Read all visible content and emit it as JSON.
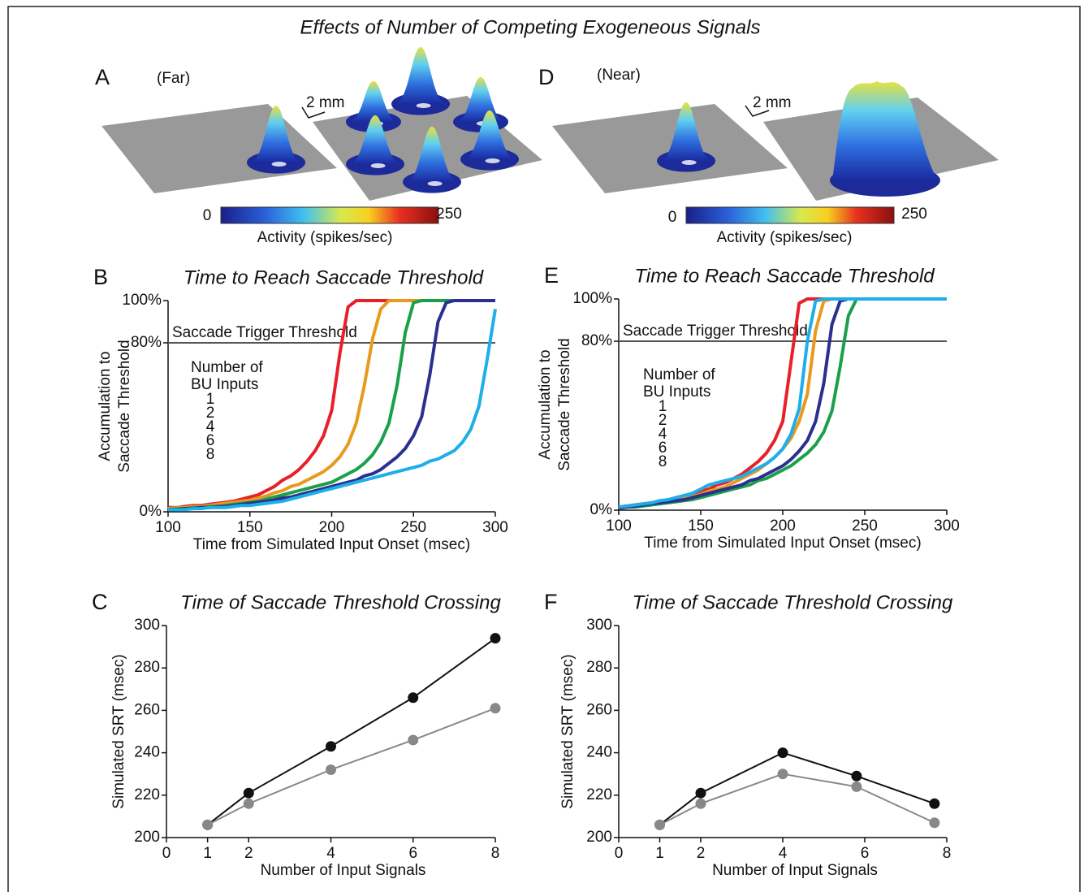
{
  "title": "Effects of Number of Competing Exogeneous Signals",
  "panels_3d": [
    {
      "letter": "A",
      "label": "(Far)",
      "scale": "2 mm",
      "colorbar": {
        "min": 0,
        "max": 250,
        "label": "Activity (spikes/sec)"
      }
    },
    {
      "letter": "D",
      "label": "(Near)",
      "scale": "2 mm",
      "colorbar": {
        "min": 0,
        "max": 250,
        "label": "Activity (spikes/sec)"
      }
    }
  ],
  "chart_data": [
    {
      "type": "line",
      "panel": "B",
      "title": "Time to Reach Saccade Threshold",
      "x_label": "Time from Simulated Input Onset (msec)",
      "y_label": [
        "Accumulation to",
        "Saccade Threshold"
      ],
      "xlim": [
        100,
        300
      ],
      "ylim": [
        0,
        100
      ],
      "xticks": [
        100,
        150,
        200,
        250,
        300
      ],
      "yticks": [
        {
          "value": 0,
          "label": "0%"
        },
        {
          "value": 80,
          "label": "80%"
        },
        {
          "value": 100,
          "label": "100%"
        }
      ],
      "threshold": {
        "value": 80,
        "label": "Saccade Trigger Threshold"
      },
      "legend_title": [
        "Number of",
        "BU Inputs"
      ],
      "x": [
        100,
        105,
        110,
        115,
        120,
        125,
        130,
        135,
        140,
        145,
        150,
        155,
        160,
        165,
        170,
        175,
        180,
        185,
        190,
        195,
        200,
        205,
        210,
        215,
        220,
        225,
        230,
        235,
        240,
        245,
        250,
        255,
        260,
        265,
        270,
        275,
        280,
        285,
        290,
        295,
        300
      ],
      "series": [
        {
          "name": "1",
          "color": "#e8202a",
          "values": [
            2,
            2,
            2.5,
            3,
            3,
            3.5,
            4,
            4.5,
            5,
            6,
            7,
            8,
            10,
            12,
            15,
            17,
            20,
            24,
            29,
            36,
            48,
            75,
            97,
            100,
            100,
            100,
            100,
            100,
            100,
            100,
            100,
            100,
            100,
            100,
            100,
            100,
            100,
            100,
            100,
            100,
            100
          ]
        },
        {
          "name": "2",
          "color": "#e89a1e",
          "values": [
            1.5,
            2,
            2,
            2.5,
            2.5,
            3,
            3.5,
            4,
            4.5,
            5,
            5.5,
            6.5,
            7.5,
            9,
            10,
            12,
            13,
            15,
            17,
            19,
            22,
            26,
            32,
            42,
            60,
            82,
            96,
            100,
            100,
            100,
            100,
            100,
            100,
            100,
            100,
            100,
            100,
            100,
            100,
            100,
            100
          ]
        },
        {
          "name": "4",
          "color": "#1aa04a",
          "values": [
            1,
            1.5,
            1.5,
            2,
            2,
            2.5,
            2.5,
            3,
            3.5,
            4,
            4.5,
            5,
            6,
            7,
            8,
            9,
            10,
            11,
            12,
            13,
            14,
            16,
            18,
            20,
            23,
            27,
            33,
            42,
            60,
            85,
            99,
            100,
            100,
            100,
            100,
            100,
            100,
            100,
            100,
            100,
            100
          ]
        },
        {
          "name": "6",
          "color": "#2b2f8f",
          "values": [
            1,
            1,
            1.5,
            1.5,
            2,
            2,
            2.5,
            2.5,
            3,
            3.5,
            4,
            4.5,
            5,
            5.5,
            6.5,
            7,
            8,
            9,
            10,
            11,
            12,
            13,
            14,
            15,
            17,
            18,
            20,
            23,
            26,
            30,
            36,
            45,
            65,
            90,
            99,
            100,
            100,
            100,
            100,
            100,
            100
          ]
        },
        {
          "name": "8",
          "color": "#1eaee8",
          "values": [
            1,
            1,
            1,
            1.5,
            1.5,
            2,
            2,
            2,
            2.5,
            3,
            3,
            3.5,
            4,
            4.5,
            5,
            6,
            7,
            8,
            9,
            10,
            11,
            12,
            13,
            14,
            15,
            16,
            17,
            18,
            19,
            20,
            21,
            22,
            24,
            25,
            27,
            29,
            33,
            39,
            50,
            72,
            96
          ]
        }
      ]
    },
    {
      "type": "line",
      "panel": "E",
      "title": "Time to Reach Saccade Threshold",
      "x_label": "Time from Simulated Input Onset (msec)",
      "y_label": [
        "Accumulation to",
        "Saccade Threshold"
      ],
      "xlim": [
        100,
        300
      ],
      "ylim": [
        0,
        100
      ],
      "xticks": [
        100,
        150,
        200,
        250,
        300
      ],
      "yticks": [
        {
          "value": 0,
          "label": "0%"
        },
        {
          "value": 80,
          "label": "80%"
        },
        {
          "value": 100,
          "label": "100%"
        }
      ],
      "threshold": {
        "value": 80,
        "label": "Saccade Trigger Threshold"
      },
      "legend_title": [
        "Number of",
        "BU Inputs"
      ],
      "x": [
        100,
        105,
        110,
        115,
        120,
        125,
        130,
        135,
        140,
        145,
        150,
        155,
        160,
        165,
        170,
        175,
        180,
        185,
        190,
        195,
        200,
        205,
        210,
        215,
        220,
        225,
        230,
        235,
        240,
        245,
        250,
        255,
        260,
        265,
        270,
        275,
        280,
        285,
        290,
        295,
        300
      ],
      "series": [
        {
          "name": "1",
          "color": "#e8202a",
          "values": [
            1.5,
            2,
            2.5,
            3,
            3.5,
            4,
            4.5,
            5.5,
            6.5,
            7.5,
            9,
            10,
            12,
            13,
            15,
            17,
            20,
            23,
            27,
            33,
            42,
            70,
            98,
            100,
            100,
            100,
            100,
            100,
            100,
            100,
            100,
            100,
            100,
            100,
            100,
            100,
            100,
            100,
            100,
            100,
            100
          ]
        },
        {
          "name": "2",
          "color": "#e89a1e",
          "values": [
            1,
            1.5,
            2,
            2.5,
            3,
            3.5,
            4,
            4.5,
            5.5,
            6.5,
            7.5,
            9,
            10,
            11,
            13,
            15,
            17,
            19,
            22,
            25,
            29,
            34,
            42,
            55,
            85,
            99,
            100,
            100,
            100,
            100,
            100,
            100,
            100,
            100,
            100,
            100,
            100,
            100,
            100,
            100,
            100
          ]
        },
        {
          "name": "4",
          "color": "#1aa04a",
          "values": [
            1,
            1.5,
            1.5,
            2,
            2.5,
            3,
            3.5,
            4,
            4.5,
            5,
            6,
            7,
            8,
            9,
            10,
            11,
            12,
            14,
            15,
            17,
            19,
            21,
            24,
            27,
            31,
            37,
            47,
            68,
            92,
            100,
            100,
            100,
            100,
            100,
            100,
            100,
            100,
            100,
            100,
            100,
            100
          ]
        },
        {
          "name": "6",
          "color": "#2b2f8f",
          "values": [
            1,
            1.5,
            2,
            2.5,
            3,
            3.5,
            4,
            4.5,
            5,
            6,
            7,
            8,
            9,
            10,
            11,
            12,
            14,
            15,
            17,
            19,
            21,
            24,
            28,
            33,
            42,
            60,
            88,
            99,
            100,
            100,
            100,
            100,
            100,
            100,
            100,
            100,
            100,
            100,
            100,
            100,
            100
          ]
        },
        {
          "name": "8",
          "color": "#1eaee8",
          "values": [
            1.5,
            2,
            2.5,
            3,
            3.5,
            4.5,
            5,
            6,
            7,
            8,
            10,
            12,
            13,
            14,
            15,
            16,
            18,
            20,
            22,
            25,
            29,
            36,
            48,
            80,
            99,
            100,
            100,
            100,
            100,
            100,
            100,
            100,
            100,
            100,
            100,
            100,
            100,
            100,
            100,
            100,
            100
          ]
        }
      ]
    },
    {
      "type": "line",
      "panel": "C",
      "title": "Time of Saccade Threshold Crossing",
      "markers": true,
      "x_label": "Number of Input Signals",
      "y_label": [
        "Simulated SRT (msec)"
      ],
      "xlim": [
        0,
        8
      ],
      "ylim": [
        200,
        300
      ],
      "xticks": [
        0,
        1,
        2,
        4,
        6,
        8
      ],
      "yticks": [
        200,
        220,
        240,
        260,
        280,
        300
      ],
      "x": [
        1,
        2,
        4,
        6,
        8
      ],
      "series": [
        {
          "color": "#111111",
          "values": [
            206,
            221,
            243,
            266,
            294
          ]
        },
        {
          "color": "#888888",
          "values": [
            206,
            216,
            232,
            246,
            261
          ]
        }
      ]
    },
    {
      "type": "line",
      "panel": "F",
      "title": "Time of Saccade Threshold Crossing",
      "markers": true,
      "x_label": "Number of Input Signals",
      "y_label": [
        "Simulated SRT (msec)"
      ],
      "xlim": [
        0,
        8
      ],
      "ylim": [
        200,
        300
      ],
      "xticks": [
        0,
        1,
        2,
        4,
        6,
        8
      ],
      "yticks": [
        200,
        220,
        240,
        260,
        280,
        300
      ],
      "x": [
        1,
        2,
        4,
        5.8,
        7.7
      ],
      "series": [
        {
          "color": "#111111",
          "values": [
            206,
            221,
            240,
            229,
            216
          ]
        },
        {
          "color": "#888888",
          "values": [
            206,
            216,
            230,
            224,
            207
          ]
        }
      ]
    }
  ]
}
